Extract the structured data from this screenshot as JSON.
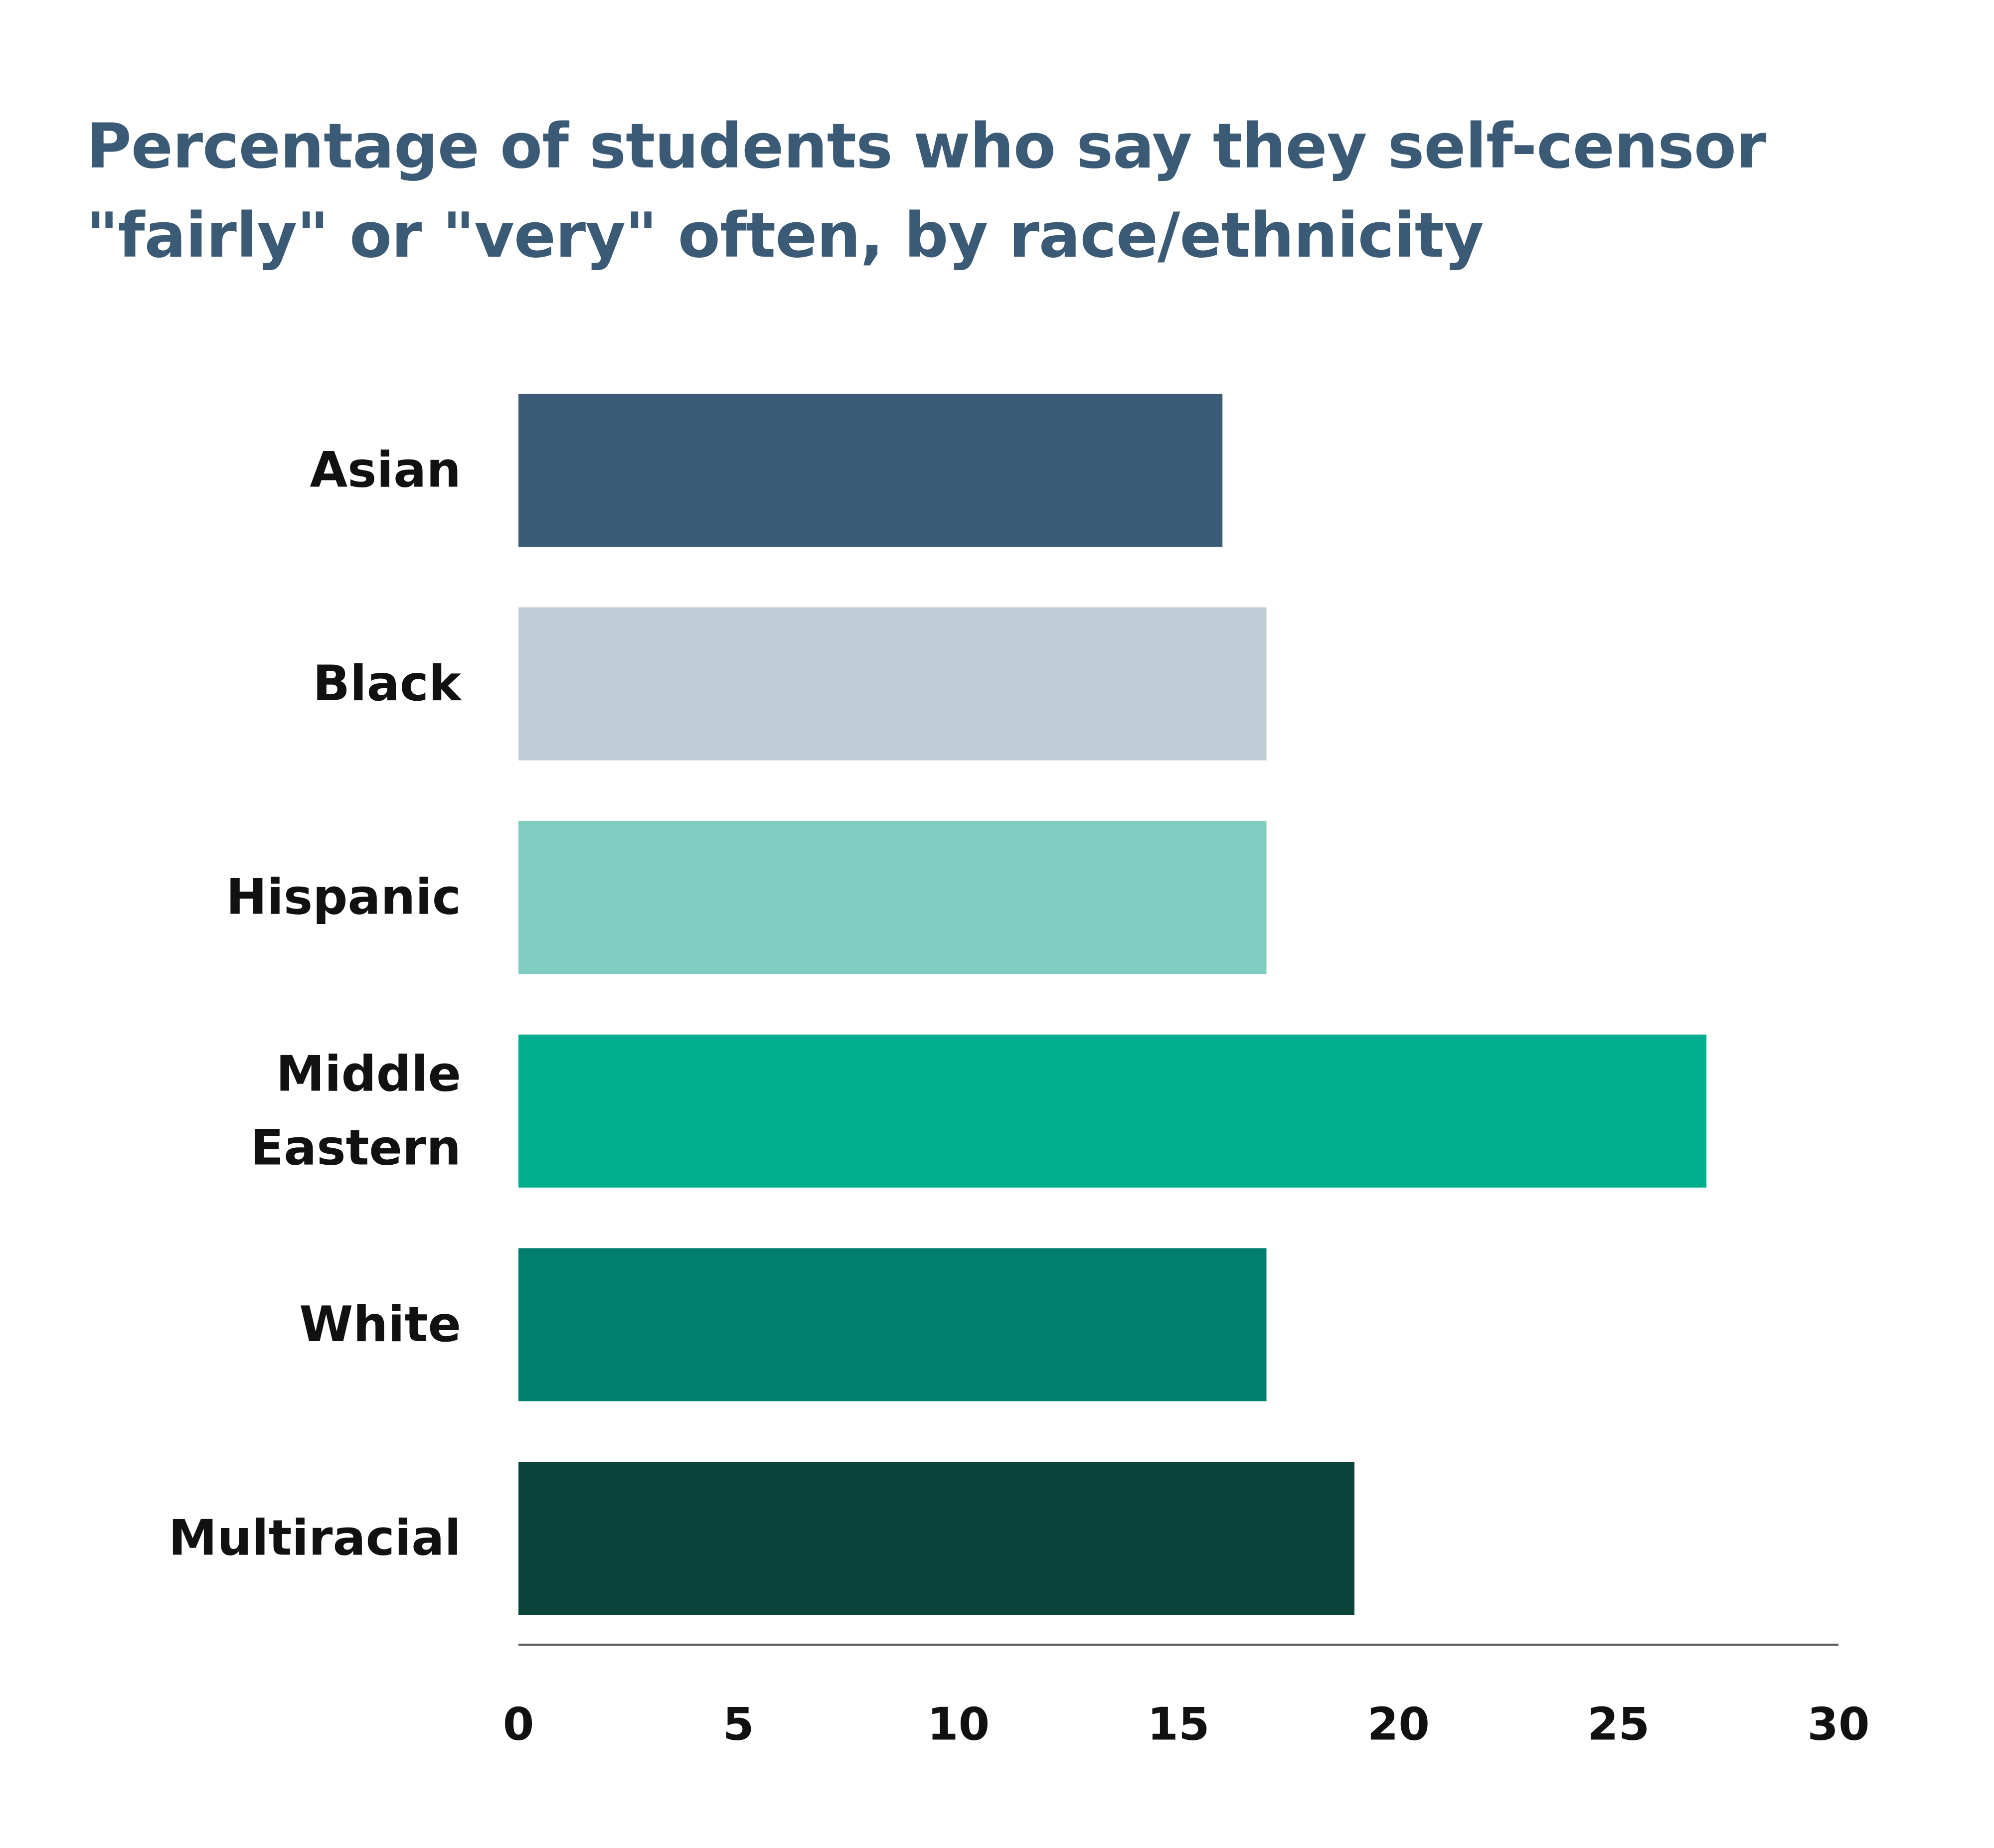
{
  "chart_data": {
    "type": "bar",
    "orientation": "horizontal",
    "title": "Percentage of students who say they self-censor \"fairly\" or \"very\" often, by race/ethnicity",
    "xlabel": "",
    "ylabel": "",
    "categories": [
      {
        "lines": [
          "Asian"
        ],
        "value": 16,
        "color": "#3b5a76"
      },
      {
        "lines": [
          "Black"
        ],
        "value": 17,
        "color": "#becdd6"
      },
      {
        "lines": [
          "Hispanic"
        ],
        "value": 17,
        "color": "#7fcdc0"
      },
      {
        "lines": [
          "Middle",
          "Eastern"
        ],
        "value": 27,
        "color": "#00af8f"
      },
      {
        "lines": [
          "White"
        ],
        "value": 17,
        "color": "#007f6e"
      },
      {
        "lines": [
          "Multiracial"
        ],
        "value": 19,
        "color": "#0a443a"
      }
    ],
    "xlim": [
      0,
      30
    ],
    "xticks": [
      "0",
      "5",
      "10",
      "15",
      "20",
      "25",
      "30"
    ],
    "grid": false,
    "legend": "none",
    "axis_color": "#555555"
  }
}
